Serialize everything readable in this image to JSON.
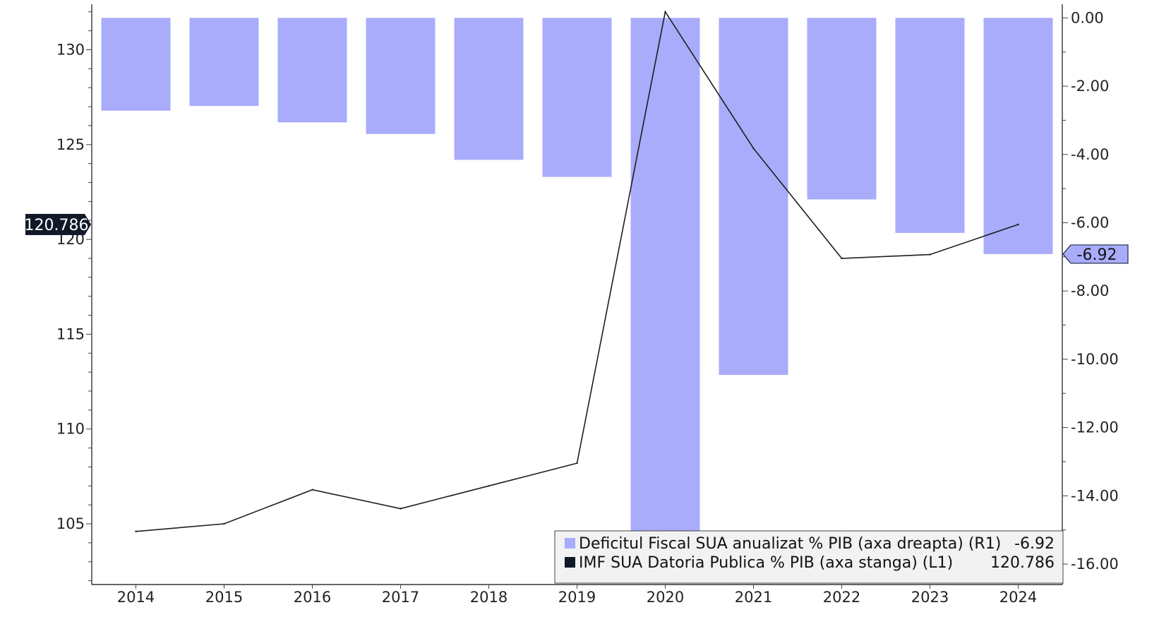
{
  "chart_data": {
    "type": "bar+line",
    "categories": [
      "2014",
      "2015",
      "2016",
      "2017",
      "2018",
      "2019",
      "2020",
      "2021",
      "2022",
      "2023",
      "2024"
    ],
    "series": [
      {
        "name": "Deficitul Fiscal SUA anualizat % PIB (axa dreapta) (R1)",
        "type": "bar",
        "axis": "right",
        "color": "#a9acfb",
        "last_value_label": "-6.92",
        "values": [
          -2.72,
          -2.58,
          -3.06,
          -3.4,
          -4.16,
          -4.66,
          -15.14,
          -10.46,
          -5.32,
          -6.3,
          -6.92
        ]
      },
      {
        "name": "IMF SUA Datoria Publica % PIB (axa stanga) (L1)",
        "type": "line",
        "axis": "left",
        "color": "#1e1e1e",
        "last_value_label": "120.786",
        "values": [
          104.6,
          105.0,
          106.8,
          105.8,
          107.0,
          108.2,
          132.0,
          124.8,
          119.0,
          119.2,
          120.786
        ]
      }
    ],
    "left_axis": {
      "ylim": [
        101.8,
        132.4
      ],
      "ticks": [
        105,
        110,
        115,
        120,
        125,
        130
      ],
      "tick_labels": [
        "105",
        "110",
        "115",
        "120",
        "125",
        "130"
      ],
      "flag_label": "120.786",
      "flag_value": 120.786
    },
    "right_axis": {
      "ylim": [
        -16.6,
        0.4
      ],
      "ticks": [
        0,
        -2,
        -4,
        -6,
        -8,
        -10,
        -12,
        -14,
        -16
      ],
      "tick_labels": [
        "0.00",
        "-2.00",
        "-4.00",
        "-6.00",
        "-8.00",
        "-10.00",
        "-12.00",
        "-14.00",
        "-16.00"
      ],
      "flag_label": "-6.92",
      "flag_value": -6.92
    },
    "legend": {
      "placement": "bottom-right",
      "entries": [
        {
          "label": "Deficitul Fiscal SUA anualizat % PIB (axa dreapta) (R1)",
          "value": "-6.92",
          "color": "#a9acfb"
        },
        {
          "label": "IMF SUA Datoria Publica % PIB (axa stanga) (L1)",
          "value": "120.786",
          "color": "#111827"
        }
      ]
    },
    "grid": false
  }
}
